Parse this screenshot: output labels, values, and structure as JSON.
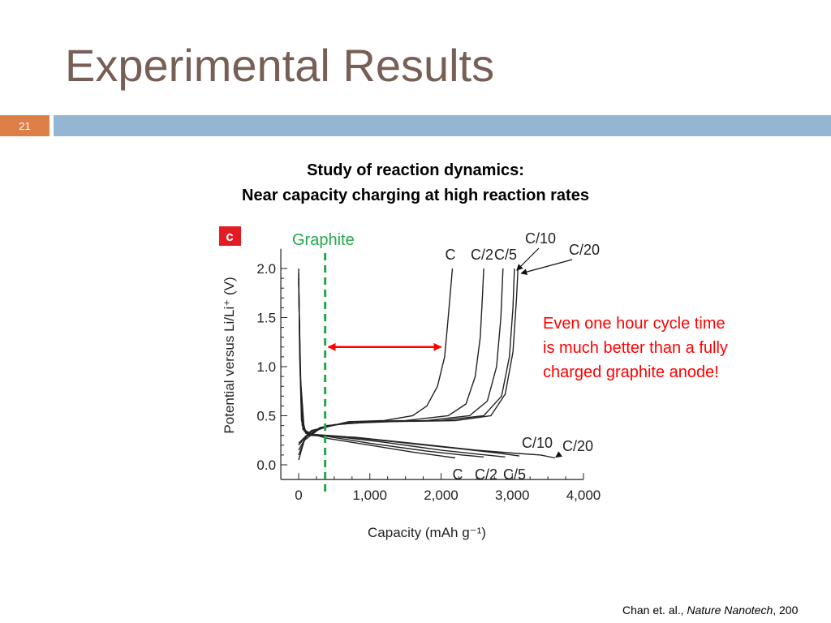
{
  "slide": {
    "title": "Experimental Results",
    "slide_number": "21",
    "subtitle_line1": "Study of reaction dynamics:",
    "subtitle_line2": "Near capacity charging at high reaction rates",
    "annotation_lines": [
      "Even one hour cycle time",
      "is much better than a fully",
      "charged graphite anode!"
    ],
    "citation_authors": "Chan et. al., ",
    "citation_journal": "Nature Nanotech",
    "citation_year": ", 200"
  },
  "colors": {
    "title": "#775f55",
    "number_box": "#dd8047",
    "band": "#94b6d2",
    "graphite": "#22a84a",
    "annotation": "#ff0000",
    "panel_badge": "#e31b23"
  },
  "chart_data": {
    "type": "line",
    "panel_label": "c",
    "xlabel": "Capacity (mAh g⁻¹)",
    "ylabel": "Potential versus Li/Li⁺ (V)",
    "xlim": [
      -250,
      4000
    ],
    "ylim": [
      -0.15,
      2.2
    ],
    "x_ticks": [
      0,
      1000,
      2000,
      3000,
      4000
    ],
    "x_tick_labels": [
      "0",
      "1,000",
      "2,000",
      "3,000",
      "4,000"
    ],
    "y_ticks": [
      0.0,
      0.5,
      1.0,
      1.5,
      2.0
    ],
    "y_tick_labels": [
      "0.0",
      "0.5",
      "1.0",
      "1.5",
      "2.0"
    ],
    "graphite_capacity": 372,
    "graphite_label": "Graphite",
    "arrow": {
      "from": 372,
      "to": 2000,
      "y": 1.2
    },
    "charge_labels": [
      "C",
      "C/2",
      "C/5",
      "C/10",
      "C/20"
    ],
    "discharge_labels": [
      "C",
      "C/2",
      "C/5",
      "C/10",
      "C/20"
    ],
    "series": [
      {
        "name": "C",
        "discharge": [
          [
            0,
            2.0
          ],
          [
            15,
            1.2
          ],
          [
            40,
            0.5
          ],
          [
            100,
            0.33
          ],
          [
            400,
            0.27
          ],
          [
            1000,
            0.2
          ],
          [
            1600,
            0.13
          ],
          [
            2000,
            0.09
          ],
          [
            2200,
            0.07
          ]
        ],
        "charge": [
          [
            0,
            0.05
          ],
          [
            80,
            0.25
          ],
          [
            300,
            0.37
          ],
          [
            700,
            0.44
          ],
          [
            1200,
            0.45
          ],
          [
            1600,
            0.5
          ],
          [
            1800,
            0.6
          ],
          [
            1950,
            0.8
          ],
          [
            2050,
            1.1
          ],
          [
            2100,
            1.5
          ],
          [
            2160,
            2.0
          ]
        ]
      },
      {
        "name": "C/2",
        "discharge": [
          [
            0,
            1.95
          ],
          [
            15,
            1.1
          ],
          [
            40,
            0.45
          ],
          [
            100,
            0.32
          ],
          [
            400,
            0.29
          ],
          [
            1000,
            0.22
          ],
          [
            1800,
            0.14
          ],
          [
            2300,
            0.1
          ],
          [
            2600,
            0.08
          ]
        ],
        "charge": [
          [
            0,
            0.1
          ],
          [
            100,
            0.28
          ],
          [
            300,
            0.38
          ],
          [
            800,
            0.44
          ],
          [
            1500,
            0.45
          ],
          [
            2100,
            0.5
          ],
          [
            2350,
            0.62
          ],
          [
            2480,
            0.9
          ],
          [
            2550,
            1.3
          ],
          [
            2580,
            1.7
          ],
          [
            2600,
            2.0
          ]
        ]
      },
      {
        "name": "C/5",
        "discharge": [
          [
            0,
            1.9
          ],
          [
            20,
            1.0
          ],
          [
            50,
            0.4
          ],
          [
            150,
            0.3
          ],
          [
            500,
            0.29
          ],
          [
            1200,
            0.23
          ],
          [
            2000,
            0.15
          ],
          [
            2500,
            0.11
          ],
          [
            2900,
            0.08
          ]
        ],
        "charge": [
          [
            0,
            0.15
          ],
          [
            120,
            0.3
          ],
          [
            400,
            0.4
          ],
          [
            1000,
            0.44
          ],
          [
            1800,
            0.45
          ],
          [
            2400,
            0.5
          ],
          [
            2650,
            0.65
          ],
          [
            2780,
            1.0
          ],
          [
            2840,
            1.5
          ],
          [
            2870,
            2.0
          ]
        ]
      },
      {
        "name": "C/10",
        "discharge": [
          [
            0,
            1.9
          ],
          [
            25,
            0.9
          ],
          [
            60,
            0.36
          ],
          [
            200,
            0.31
          ],
          [
            600,
            0.29
          ],
          [
            1400,
            0.23
          ],
          [
            2300,
            0.16
          ],
          [
            2800,
            0.12
          ],
          [
            3100,
            0.09
          ]
        ],
        "charge": [
          [
            0,
            0.2
          ],
          [
            150,
            0.33
          ],
          [
            500,
            0.41
          ],
          [
            1100,
            0.44
          ],
          [
            2000,
            0.45
          ],
          [
            2600,
            0.5
          ],
          [
            2850,
            0.7
          ],
          [
            2960,
            1.1
          ],
          [
            3010,
            1.6
          ],
          [
            3030,
            2.0
          ]
        ]
      },
      {
        "name": "C/20",
        "discharge": [
          [
            0,
            1.85
          ],
          [
            30,
            0.85
          ],
          [
            80,
            0.34
          ],
          [
            250,
            0.3
          ],
          [
            800,
            0.28
          ],
          [
            1600,
            0.22
          ],
          [
            2500,
            0.15
          ],
          [
            3000,
            0.12
          ],
          [
            3400,
            0.1
          ],
          [
            3600,
            0.07
          ]
        ],
        "charge": [
          [
            0,
            0.22
          ],
          [
            180,
            0.35
          ],
          [
            600,
            0.42
          ],
          [
            1300,
            0.44
          ],
          [
            2200,
            0.45
          ],
          [
            2700,
            0.5
          ],
          [
            2900,
            0.72
          ],
          [
            3010,
            1.15
          ],
          [
            3060,
            1.7
          ],
          [
            3080,
            2.0
          ]
        ]
      }
    ]
  }
}
